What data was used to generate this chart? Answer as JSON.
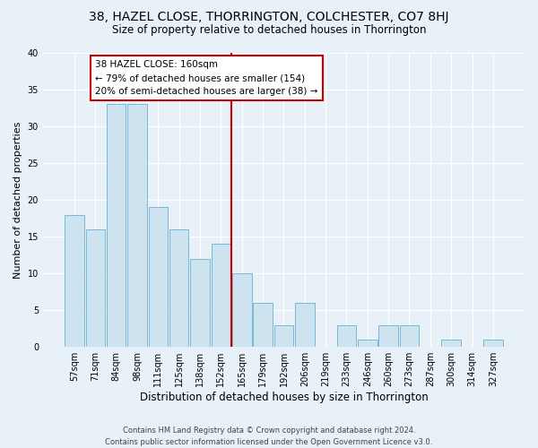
{
  "title1": "38, HAZEL CLOSE, THORRINGTON, COLCHESTER, CO7 8HJ",
  "title2": "Size of property relative to detached houses in Thorrington",
  "xlabel": "Distribution of detached houses by size in Thorrington",
  "ylabel": "Number of detached properties",
  "bin_labels": [
    "57sqm",
    "71sqm",
    "84sqm",
    "98sqm",
    "111sqm",
    "125sqm",
    "138sqm",
    "152sqm",
    "165sqm",
    "179sqm",
    "192sqm",
    "206sqm",
    "219sqm",
    "233sqm",
    "246sqm",
    "260sqm",
    "273sqm",
    "287sqm",
    "300sqm",
    "314sqm",
    "327sqm"
  ],
  "bar_heights": [
    18,
    16,
    33,
    33,
    19,
    16,
    12,
    14,
    10,
    6,
    3,
    6,
    0,
    3,
    1,
    3,
    3,
    0,
    1,
    0,
    1
  ],
  "bar_color": "#cde4f0",
  "bar_edge_color": "#7ab8d8",
  "vline_x_idx": 8,
  "vline_color": "#cc0000",
  "annotation_line1": "38 HAZEL CLOSE: 160sqm",
  "annotation_line2": "← 79% of detached houses are smaller (154)",
  "annotation_line3": "20% of semi-detached houses are larger (38) →",
  "annotation_box_color": "#cc0000",
  "ylim": [
    0,
    40
  ],
  "yticks": [
    0,
    5,
    10,
    15,
    20,
    25,
    30,
    35,
    40
  ],
  "footer1": "Contains HM Land Registry data © Crown copyright and database right 2024.",
  "footer2": "Contains public sector information licensed under the Open Government Licence v3.0.",
  "bg_color": "#e8f0f8",
  "plot_bg_color": "#e8f0f8",
  "title1_fontsize": 10,
  "title2_fontsize": 8.5,
  "ylabel_fontsize": 8,
  "xlabel_fontsize": 8.5,
  "tick_fontsize": 7,
  "annotation_fontsize": 7.5,
  "footer_fontsize": 6
}
